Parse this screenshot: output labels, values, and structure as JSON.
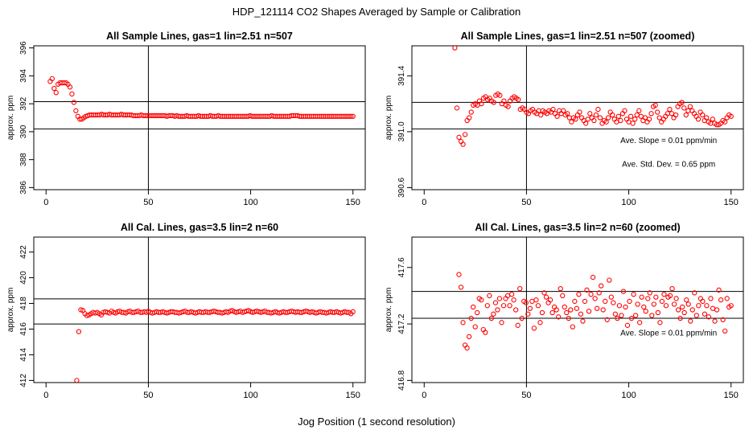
{
  "page": {
    "title": "HDP_121114  CO2 Shapes Averaged by Sample or Calibration",
    "xlabel": "Jog Position (1 second resolution)"
  },
  "colors": {
    "points": "#ff0000",
    "axes": "#000000",
    "background": "#ffffff"
  },
  "chart_data": [
    {
      "type": "scatter",
      "title": "All Sample Lines, gas=1 lin=2.51 n=507",
      "ylabel": "approx. ppm",
      "xlim": [
        0,
        150
      ],
      "ylim": [
        386,
        396
      ],
      "xticks": [
        0,
        50,
        100,
        150
      ],
      "yticks": [
        386,
        388,
        390,
        392,
        394,
        396
      ],
      "hlines": [
        390.2,
        392.15
      ],
      "vline": 50,
      "annotations": [],
      "series": [
        {
          "name": "Sample Lines",
          "x_start": 2,
          "x_end": 150,
          "values": [
            393.6,
            393.8,
            393.1,
            392.8,
            393.4,
            393.5,
            393.5,
            393.5,
            393.5,
            393.4,
            393.2,
            392.7,
            392.1,
            391.5,
            391.1,
            390.9,
            390.9,
            391.0,
            391.1,
            391.15,
            391.2,
            391.2,
            391.2,
            391.2,
            391.2,
            391.2,
            391.25,
            391.2,
            391.2,
            391.2,
            391.25,
            391.2,
            391.2,
            391.2,
            391.2,
            391.2,
            391.25,
            391.2,
            391.2,
            391.2,
            391.2,
            391.2,
            391.15,
            391.15,
            391.15,
            391.15,
            391.2,
            391.15,
            391.15,
            391.15,
            391.15,
            391.15,
            391.15,
            391.15,
            391.15,
            391.15,
            391.15,
            391.15,
            391.15,
            391.1,
            391.15,
            391.15,
            391.15,
            391.1,
            391.15,
            391.1,
            391.1,
            391.1,
            391.1,
            391.15,
            391.1,
            391.1,
            391.1,
            391.1,
            391.1,
            391.15,
            391.1,
            391.1,
            391.1,
            391.1,
            391.1,
            391.15,
            391.1,
            391.1,
            391.1,
            391.15,
            391.1,
            391.1,
            391.1,
            391.1,
            391.1,
            391.1,
            391.1,
            391.1,
            391.1,
            391.1,
            391.1,
            391.1,
            391.1,
            391.1,
            391.1,
            391.15,
            391.1,
            391.1,
            391.1,
            391.1,
            391.1,
            391.1,
            391.1,
            391.1,
            391.1,
            391.1,
            391.15,
            391.1,
            391.1,
            391.1,
            391.1,
            391.1,
            391.1,
            391.1,
            391.1,
            391.1,
            391.15,
            391.15,
            391.15,
            391.15,
            391.1,
            391.1,
            391.1,
            391.1,
            391.1,
            391.1,
            391.1,
            391.1,
            391.1,
            391.1,
            391.1,
            391.1,
            391.1,
            391.1,
            391.1,
            391.1,
            391.1,
            391.1,
            391.1,
            391.1,
            391.1,
            391.1,
            391.1,
            391.1,
            391.1,
            391.1,
            391.1,
            391.1
          ]
        }
      ]
    },
    {
      "type": "scatter",
      "title": "All Sample Lines, gas=1 lin=2.51 n=507 (zoomed)",
      "ylabel": "approx. ppm",
      "xlim": [
        0,
        150
      ],
      "ylim": [
        390.6,
        391.6
      ],
      "xticks": [
        0,
        50,
        100,
        150
      ],
      "yticks": [
        390.6,
        391.0,
        391.4
      ],
      "ytick_labels": [
        "390.6",
        "391.0",
        "391.4"
      ],
      "hlines": [
        391.02,
        391.21
      ],
      "vline": 50,
      "annotations": [
        "Ave. Slope =  0.01  ppm/min",
        "Ave. Std. Dev. =  0.65  ppm"
      ],
      "series": [
        {
          "name": "Sample Lines (zoomed)",
          "x_start": 15,
          "x_end": 150,
          "values": [
            391.6,
            391.17,
            390.96,
            390.93,
            390.91,
            390.98,
            391.08,
            391.1,
            391.14,
            391.19,
            391.2,
            391.19,
            391.22,
            391.2,
            391.24,
            391.25,
            391.23,
            391.24,
            391.22,
            391.21,
            391.26,
            391.27,
            391.26,
            391.2,
            391.22,
            391.19,
            391.18,
            391.22,
            391.24,
            391.25,
            391.24,
            391.23,
            391.16,
            391.17,
            391.16,
            391.14,
            391.13,
            391.15,
            391.16,
            391.14,
            391.13,
            391.15,
            391.12,
            391.15,
            391.14,
            391.13,
            391.15,
            391.14,
            391.16,
            391.13,
            391.11,
            391.15,
            391.13,
            391.15,
            391.12,
            391.13,
            391.1,
            391.07,
            391.1,
            391.09,
            391.12,
            391.14,
            391.1,
            391.08,
            391.06,
            391.09,
            391.13,
            391.1,
            391.08,
            391.12,
            391.16,
            391.1,
            391.06,
            391.08,
            391.07,
            391.1,
            391.14,
            391.12,
            391.09,
            391.07,
            391.11,
            391.08,
            391.13,
            391.15,
            391.09,
            391.07,
            391.11,
            391.06,
            391.09,
            391.12,
            391.15,
            391.11,
            391.08,
            391.1,
            391.07,
            391.09,
            391.13,
            391.18,
            391.19,
            391.14,
            391.1,
            391.07,
            391.09,
            391.11,
            391.13,
            391.16,
            391.13,
            391.1,
            391.12,
            391.18,
            391.2,
            391.21,
            391.17,
            391.12,
            391.15,
            391.18,
            391.15,
            391.13,
            391.11,
            391.09,
            391.14,
            391.12,
            391.08,
            391.1,
            391.07,
            391.06,
            391.09,
            391.06,
            391.05,
            391.05,
            391.06,
            391.08,
            391.07,
            391.1,
            391.12,
            391.11
          ]
        }
      ]
    },
    {
      "type": "scatter",
      "title": "All Cal. Lines, gas=3.5 lin=2 n=60",
      "ylabel": "approx. ppm",
      "xlim": [
        0,
        150
      ],
      "ylim": [
        412,
        423
      ],
      "xticks": [
        0,
        50,
        100,
        150
      ],
      "yticks": [
        412,
        414,
        416,
        418,
        420,
        422
      ],
      "hlines": [
        416.4,
        418.35
      ],
      "vline": 50,
      "annotations": [],
      "series": [
        {
          "name": "Cal. Lines",
          "x_start": 15,
          "x_end": 150,
          "values": [
            412.0,
            415.8,
            417.5,
            417.45,
            417.2,
            417.05,
            417.1,
            417.2,
            417.3,
            417.25,
            417.3,
            417.2,
            417.1,
            417.3,
            417.35,
            417.3,
            417.25,
            417.4,
            417.3,
            417.25,
            417.35,
            417.4,
            417.3,
            417.3,
            417.25,
            417.35,
            417.4,
            417.3,
            417.3,
            417.35,
            417.4,
            417.3,
            417.3,
            417.35,
            417.3,
            417.4,
            417.3,
            417.25,
            417.3,
            417.35,
            417.3,
            417.3,
            417.35,
            417.3,
            417.25,
            417.3,
            417.35,
            417.35,
            417.3,
            417.3,
            417.25,
            417.3,
            417.35,
            417.4,
            417.3,
            417.3,
            417.35,
            417.3,
            417.25,
            417.3,
            417.35,
            417.3,
            417.3,
            417.35,
            417.3,
            417.3,
            417.35,
            417.4,
            417.35,
            417.3,
            417.3,
            417.25,
            417.3,
            417.35,
            417.3,
            417.4,
            417.45,
            417.35,
            417.3,
            417.35,
            417.4,
            417.3,
            417.35,
            417.4,
            417.45,
            417.35,
            417.3,
            417.35,
            417.4,
            417.35,
            417.3,
            417.35,
            417.4,
            417.3,
            417.3,
            417.25,
            417.3,
            417.35,
            417.3,
            417.25,
            417.3,
            417.35,
            417.3,
            417.3,
            417.35,
            417.4,
            417.35,
            417.3,
            417.35,
            417.3,
            417.3,
            417.35,
            417.4,
            417.35,
            417.3,
            417.35,
            417.3,
            417.25,
            417.3,
            417.35,
            417.3,
            417.3,
            417.25,
            417.3,
            417.35,
            417.3,
            417.3,
            417.35,
            417.3,
            417.25,
            417.3,
            417.35,
            417.3,
            417.3,
            417.2,
            417.35
          ]
        }
      ]
    },
    {
      "type": "scatter",
      "title": "All Cal. Lines, gas=3.5 lin=2 n=60 (zoomed)",
      "ylabel": "approx. ppm",
      "xlim": [
        0,
        150
      ],
      "ylim": [
        416.8,
        417.8
      ],
      "xticks": [
        0,
        50,
        100,
        150
      ],
      "yticks": [
        416.8,
        417.2,
        417.6
      ],
      "ytick_labels": [
        "416.8",
        "417.2",
        "417.6"
      ],
      "hlines": [
        417.24,
        417.43
      ],
      "vline": 50,
      "annotations": [
        "Ave. Slope =  0.01  ppm/min"
      ],
      "series": [
        {
          "name": "Cal. Lines (zoomed)",
          "x_start": 17,
          "x_end": 150,
          "values": [
            417.55,
            417.46,
            417.21,
            417.05,
            417.03,
            417.11,
            417.24,
            417.32,
            417.18,
            417.28,
            417.38,
            417.37,
            417.16,
            417.14,
            417.33,
            417.4,
            417.24,
            417.27,
            417.35,
            417.3,
            417.38,
            417.21,
            417.33,
            417.38,
            417.4,
            417.33,
            417.41,
            417.37,
            417.3,
            417.19,
            417.45,
            417.24,
            417.36,
            417.35,
            417.27,
            417.31,
            417.36,
            417.17,
            417.37,
            417.33,
            417.21,
            417.28,
            417.42,
            417.39,
            417.35,
            417.37,
            417.28,
            417.32,
            417.3,
            417.25,
            417.45,
            417.4,
            417.32,
            417.28,
            417.24,
            417.3,
            417.18,
            417.36,
            417.31,
            417.41,
            417.27,
            417.22,
            417.36,
            417.44,
            417.29,
            417.41,
            417.53,
            417.38,
            417.31,
            417.42,
            417.47,
            417.3,
            417.36,
            417.23,
            417.51,
            417.39,
            417.35,
            417.27,
            417.24,
            417.33,
            417.26,
            417.43,
            417.32,
            417.19,
            417.36,
            417.24,
            417.41,
            417.26,
            417.34,
            417.21,
            417.39,
            417.32,
            417.29,
            417.38,
            417.42,
            417.26,
            417.34,
            417.39,
            417.28,
            417.21,
            417.36,
            417.41,
            417.33,
            417.39,
            417.4,
            417.45,
            417.34,
            417.38,
            417.3,
            417.24,
            417.32,
            417.28,
            417.37,
            417.34,
            417.22,
            417.3,
            417.42,
            417.26,
            417.33,
            417.38,
            417.36,
            417.27,
            417.33,
            417.25,
            417.38,
            417.31,
            417.22,
            417.3,
            417.44,
            417.37,
            417.23,
            417.15,
            417.38,
            417.32,
            417.33
          ]
        }
      ]
    }
  ]
}
